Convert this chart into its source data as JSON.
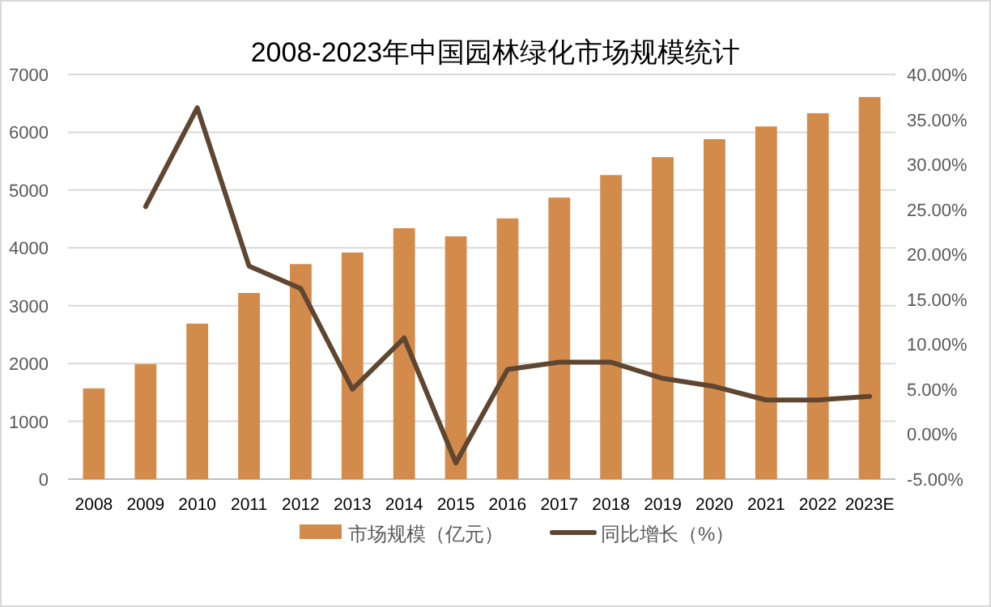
{
  "chart_data": {
    "type": "bar",
    "title": "2008-2023年中国园林绿化市场规模统计",
    "categories": [
      "2008",
      "2009",
      "2010",
      "2011",
      "2012",
      "2013",
      "2014",
      "2015",
      "2016",
      "2017",
      "2018",
      "2019",
      "2020",
      "2021",
      "2022",
      "2023E"
    ],
    "series": [
      {
        "name": "市场规模（亿元）",
        "color": "#d38b4c",
        "values": [
          1570,
          1990,
          2690,
          3220,
          3720,
          3920,
          4340,
          4200,
          4510,
          4870,
          5260,
          5570,
          5880,
          6100,
          6330,
          6610
        ]
      },
      {
        "name": "同比增长（%）",
        "type": "line",
        "axis": "y2",
        "color": "#5f4630",
        "values": [
          null,
          25.3,
          36.3,
          18.7,
          16.2,
          5.0,
          10.7,
          -3.2,
          7.2,
          8.0,
          8.0,
          6.2,
          5.3,
          3.8,
          3.8,
          4.2
        ]
      }
    ],
    "ylim": [
      0,
      7000
    ],
    "yticks": [
      0,
      1000,
      2000,
      3000,
      4000,
      5000,
      6000,
      7000
    ],
    "y2lim": [
      -5,
      40
    ],
    "y2ticks": [
      {
        "value": -5,
        "label": "-5.00%"
      },
      {
        "value": 0,
        "label": "0.00%"
      },
      {
        "value": 5,
        "label": "5.00%"
      },
      {
        "value": 10,
        "label": "10.00%"
      },
      {
        "value": 15,
        "label": "15.00%"
      },
      {
        "value": 20,
        "label": "20.00%"
      },
      {
        "value": 25,
        "label": "25.00%"
      },
      {
        "value": 30,
        "label": "30.00%"
      },
      {
        "value": 35,
        "label": "35.00%"
      },
      {
        "value": 40,
        "label": "40.00%"
      }
    ],
    "grid": "y",
    "legend": "bottom",
    "marker": "none",
    "line_style": "solid"
  }
}
